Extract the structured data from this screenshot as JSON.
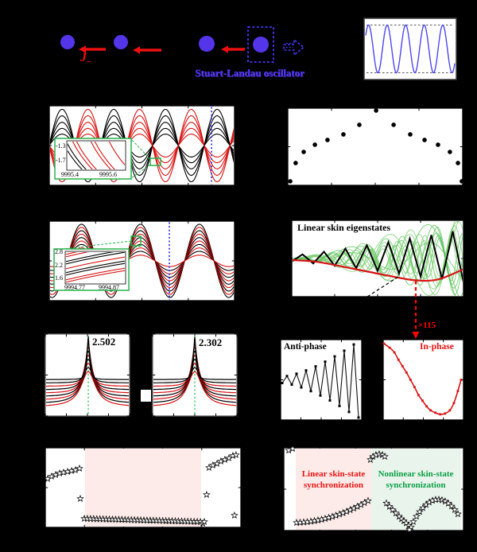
{
  "colors": {
    "node_blue": "#5535ea",
    "label_blue": "#4436f0",
    "arrow_red": "#ee1010",
    "curve_red": "#d81414",
    "black": "#000000",
    "lightgreen_curve": "#7ccf72",
    "green_accent": "#28b24b",
    "marker_blue": "#3d3df2",
    "wave_blue": "#4e46f0",
    "pink_band": "#fcebe8",
    "green_band": "#e9f4ec",
    "sync_red": "#e81414",
    "sync_green": "#0c9f45"
  },
  "schematic": {
    "coupling_label": {
      "main": "J",
      "sub": "−"
    },
    "oscillator_label": "Stuart-Landau oscillator",
    "node_count": 4,
    "arrow_direction": "left"
  },
  "chart_data": [
    {
      "id": "limit_cycle",
      "type": "line",
      "series": [
        {
          "name": "oscillation",
          "color_key": "wave_blue",
          "waveform": {
            "kind": "sine",
            "periods": 4.8,
            "amplitude_f": 0.78,
            "phase_rad": 0.6
          }
        }
      ],
      "guides": {
        "amplitude_bounds_fy": [
          0.11,
          0.89
        ]
      }
    },
    {
      "id": "antiphase_waves",
      "type": "line",
      "waveform": {
        "kind": "sine_family",
        "period_f": 0.279,
        "peak_fx": 0.069,
        "amplitudes_f": [
          0.95,
          0.78,
          0.61,
          0.45,
          0.3
        ],
        "families": [
          {
            "name": "odd-sites",
            "color_key": "black",
            "phase_shift_f": 0
          },
          {
            "name": "even-sites",
            "color_key": "red",
            "phase_shift_f": 0.5
          }
        ]
      },
      "marker_line_fx": 0.876,
      "inset": {
        "y_ticks": [
          "-1.3",
          "-1.7"
        ],
        "x_ticks": [
          "9995.4",
          "9995.6"
        ]
      }
    },
    {
      "id": "amplitude_profile",
      "type": "scatter",
      "marker": "dot",
      "points_f": [
        [
          0.014,
          0.948
        ],
        [
          0.045,
          0.711
        ],
        [
          0.091,
          0.567
        ],
        [
          0.155,
          0.474
        ],
        [
          0.227,
          0.412
        ],
        [
          0.318,
          0.34
        ],
        [
          0.409,
          0.216
        ],
        [
          0.505,
          0.031
        ],
        [
          0.605,
          0.216
        ],
        [
          0.7,
          0.34
        ],
        [
          0.782,
          0.412
        ],
        [
          0.859,
          0.474
        ],
        [
          0.927,
          0.567
        ],
        [
          0.973,
          0.711
        ],
        [
          0.995,
          0.948
        ]
      ]
    },
    {
      "id": "inphase_waves",
      "type": "line",
      "waveform": {
        "kind": "sine_family",
        "period_f": 0.318,
        "peak_fx": 0.174,
        "amplitudes_f": [
          0.96,
          0.88,
          0.79,
          0.7,
          0.61,
          0.52,
          0.43,
          0.34,
          0.25,
          0.15
        ],
        "families": [
          {
            "name": "all-sites",
            "color_alternate": [
              "black",
              "red"
            ],
            "phase_shift_f": 0
          }
        ]
      },
      "marker_line_fx": 0.648,
      "inset": {
        "y_ticks": [
          "2.8",
          "2.2",
          "1.6"
        ],
        "x_ticks": [
          "9994.77",
          "9994.87"
        ]
      }
    },
    {
      "id": "linear_skin_eigenstates",
      "type": "line",
      "title": "Linear skin eigenstates",
      "eigenstate_count": 14,
      "zigzag": {
        "teeth": 8,
        "amp_up_f": 0.34,
        "amp_dn_f": 0.27
      },
      "envelope_f": [
        [
          0,
          0.52
        ],
        [
          0.15,
          0.545
        ],
        [
          0.35,
          0.63
        ],
        [
          0.55,
          0.72
        ],
        [
          0.72,
          0.785
        ],
        [
          0.85,
          0.775
        ],
        [
          1,
          0.64
        ]
      ],
      "annotations": {
        "dashed_pointer_f": [
          [
            0.44,
            1.0
          ],
          [
            0.62,
            0.74
          ]
        ],
        "red_connector_fx": 0.722
      }
    },
    {
      "id": "spectrum_linear",
      "type": "line",
      "peak_label": "2.502",
      "center_fx": 0.51,
      "curve_count": 9
    },
    {
      "id": "spectrum_nonlinear",
      "type": "line",
      "peak_label": "2.302",
      "center_fx": 0.5,
      "curve_count": 9
    },
    {
      "id": "antiphase_state",
      "type": "line",
      "title": "Anti-phase",
      "zigzag": {
        "n_points": 17,
        "amp_f": [
          0.04,
          0.48
        ],
        "center_fy": 0.5
      }
    },
    {
      "id": "inphase_state",
      "type": "line",
      "title": "In-phase",
      "amplification": "×115",
      "points_f": [
        [
          0.01,
          0.05
        ],
        [
          0.08,
          0.1
        ],
        [
          0.14,
          0.16
        ],
        [
          0.19,
          0.25
        ],
        [
          0.24,
          0.33
        ],
        [
          0.29,
          0.41
        ],
        [
          0.34,
          0.5
        ],
        [
          0.39,
          0.59
        ],
        [
          0.44,
          0.69
        ],
        [
          0.49,
          0.76
        ],
        [
          0.54,
          0.83
        ],
        [
          0.59,
          0.88
        ],
        [
          0.65,
          0.91
        ],
        [
          0.71,
          0.93
        ],
        [
          0.77,
          0.92
        ],
        [
          0.83,
          0.88
        ],
        [
          0.88,
          0.79
        ],
        [
          0.93,
          0.64
        ],
        [
          0.97,
          0.5
        ]
      ]
    },
    {
      "id": "sync_diagram_e",
      "type": "scatter",
      "marker": "star",
      "band_fx": [
        0.203,
        0.797
      ],
      "clusters": [
        {
          "kind": "points",
          "pts": [
            [
              0.012,
              0.39
            ],
            [
              0.032,
              0.36
            ],
            [
              0.053,
              0.34
            ],
            [
              0.073,
              0.32
            ],
            [
              0.093,
              0.31
            ],
            [
              0.114,
              0.3
            ],
            [
              0.134,
              0.29
            ],
            [
              0.154,
              0.28
            ],
            [
              0.175,
              0.26
            ]
          ]
        },
        {
          "kind": "points",
          "pts": [
            [
              0.179,
              0.64
            ]
          ]
        },
        {
          "kind": "row",
          "n": 38,
          "fx": [
            0.199,
            0.793
          ],
          "fy": [
            0.89,
            0.93
          ]
        },
        {
          "kind": "points",
          "pts": [
            [
              0.805,
              0.95
            ],
            [
              0.813,
              0.93
            ]
          ]
        },
        {
          "kind": "points",
          "pts": [
            [
              0.837,
              0.25
            ],
            [
              0.857,
              0.22
            ],
            [
              0.878,
              0.2
            ],
            [
              0.898,
              0.17
            ],
            [
              0.918,
              0.15
            ],
            [
              0.939,
              0.13
            ],
            [
              0.959,
              0.1
            ],
            [
              0.975,
              0.09
            ]
          ]
        },
        {
          "kind": "points",
          "pts": [
            [
              0.825,
              0.59
            ],
            [
              0.967,
              0.85
            ]
          ]
        }
      ]
    },
    {
      "id": "sync_diagram_f",
      "type": "scatter",
      "marker": "star",
      "regions": [
        {
          "label": "Linear skin-state\nsynchronization",
          "color_key": "pink",
          "fx": [
            0.066,
            0.487
          ]
        },
        {
          "label": "Nonlinear skin-state\nsynchronization",
          "color_key": "green",
          "fx": [
            0.487,
            0.987
          ]
        }
      ],
      "clusters": [
        {
          "kind": "points",
          "pts": [
            [
              0.027,
              0.03
            ],
            [
              0.049,
              0.01
            ]
          ]
        },
        {
          "kind": "arc",
          "n": 21,
          "fx": [
            0.071,
            0.469
          ],
          "fy": [
            0.905,
            0.64
          ],
          "bend": 0.06
        },
        {
          "kind": "points",
          "pts": [
            [
              0.482,
              0.144
            ],
            [
              0.496,
              0.106
            ],
            [
              0.513,
              0.087
            ],
            [
              0.531,
              0.077
            ],
            [
              0.549,
              0.087
            ],
            [
              0.562,
              0.106
            ]
          ]
        },
        {
          "kind": "points",
          "pts": [
            [
              0.571,
              0.67
            ],
            [
              0.588,
              0.71
            ],
            [
              0.606,
              0.75
            ],
            [
              0.624,
              0.79
            ],
            [
              0.642,
              0.83
            ],
            [
              0.655,
              0.86
            ],
            [
              0.668,
              0.885
            ],
            [
              0.681,
              0.91
            ],
            [
              0.695,
              0.94
            ],
            [
              0.708,
              0.96
            ]
          ]
        },
        {
          "kind": "points",
          "pts": [
            [
              0.699,
              0.99
            ]
          ]
        },
        {
          "kind": "arc",
          "n": 15,
          "fx": [
            0.721,
            0.969
          ],
          "fy": [
            0.894,
            0.8
          ],
          "bend": -0.22
        }
      ]
    }
  ]
}
